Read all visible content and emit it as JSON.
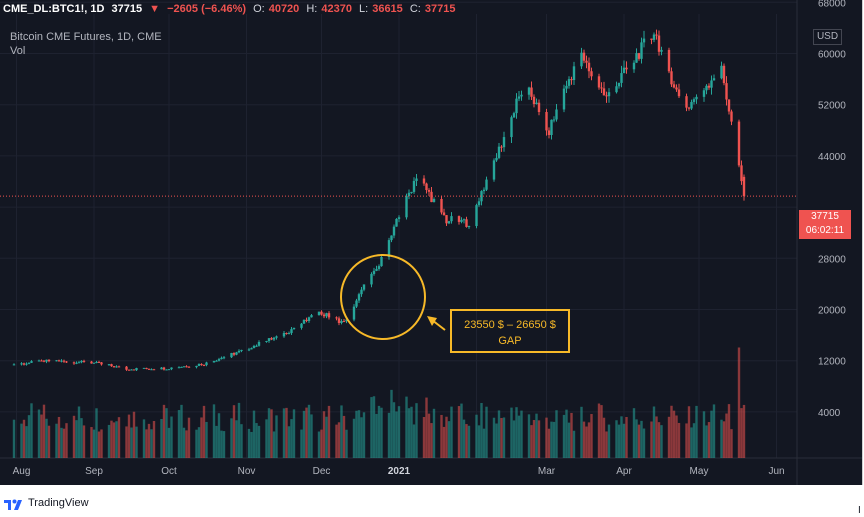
{
  "header": {
    "symbol": "CME_DL:BTC1!, 1D",
    "last": "37715",
    "change": "−2605 (−6.46%)",
    "o_label": "O:",
    "o_val": "40720",
    "h_label": "H:",
    "h_val": "42370",
    "l_label": "L:",
    "l_val": "36615",
    "c_label": "C:",
    "c_val": "37715"
  },
  "subtitle": "Bitcoin CME Futures, 1D, CME",
  "volume_label": "Vol",
  "currency": "USD",
  "price_tag": {
    "price": "37715",
    "countdown": "06:02:11"
  },
  "annotation": {
    "range": "23550 $ – 26650 $",
    "label": "GAP"
  },
  "branding": {
    "logo_icon": "tradingview-logo-icon",
    "text": "TradingView"
  },
  "colors": {
    "background": "#131722",
    "up": "#26a69a",
    "down": "#ef5350",
    "annotation": "#f7b928",
    "grid": "#1e2230"
  },
  "chart_data": {
    "type": "candlestick",
    "y_ticks": [
      "68000",
      "60000",
      "52000",
      "44000",
      "37715",
      "28000",
      "20000",
      "12000",
      "4000"
    ],
    "x_ticks": [
      "Aug",
      "Sep",
      "Oct",
      "Nov",
      "Dec",
      "2021",
      "Mar",
      "Apr",
      "May",
      "Jun"
    ],
    "ylim": [
      0,
      68000
    ],
    "last_price": 37715,
    "price_path": [
      {
        "x": "2020-07-31",
        "y": 11400
      },
      {
        "x": "2020-08-15",
        "y": 12000
      },
      {
        "x": "2020-08-31",
        "y": 11700
      },
      {
        "x": "2020-09-15",
        "y": 10700
      },
      {
        "x": "2020-09-30",
        "y": 10800
      },
      {
        "x": "2020-10-15",
        "y": 11500
      },
      {
        "x": "2020-10-31",
        "y": 13700
      },
      {
        "x": "2020-11-15",
        "y": 16000
      },
      {
        "x": "2020-11-30",
        "y": 19500
      },
      {
        "x": "2020-12-10",
        "y": 18000
      },
      {
        "x": "2020-12-18",
        "y": 23500
      },
      {
        "x": "2020-12-24",
        "y": 26800
      },
      {
        "x": "2021-01-08",
        "y": 41000
      },
      {
        "x": "2021-01-20",
        "y": 34000
      },
      {
        "x": "2021-01-29",
        "y": 33500
      },
      {
        "x": "2021-02-10",
        "y": 45000
      },
      {
        "x": "2021-02-21",
        "y": 56000
      },
      {
        "x": "2021-03-01",
        "y": 47000
      },
      {
        "x": "2021-03-14",
        "y": 60000
      },
      {
        "x": "2021-03-25",
        "y": 53000
      },
      {
        "x": "2021-04-13",
        "y": 63500
      },
      {
        "x": "2021-04-25",
        "y": 51000
      },
      {
        "x": "2021-05-10",
        "y": 58000
      },
      {
        "x": "2021-05-19",
        "y": 37715
      }
    ],
    "volume_ylim": [
      0,
      20000
    ],
    "volume_note": "volume bars estimated, same color as candle"
  }
}
